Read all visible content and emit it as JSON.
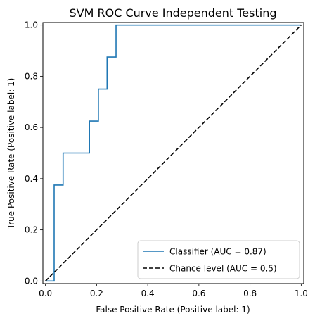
{
  "chart_data": {
    "type": "line",
    "title": "SVM ROC Curve Independent Testing",
    "xlabel": "False Positive Rate (Positive label: 1)",
    "ylabel": "True Positive Rate (Positive label: 1)",
    "xlim": [
      -0.01,
      1.01
    ],
    "ylim": [
      -0.01,
      1.01
    ],
    "xticks": [
      0.0,
      0.2,
      0.4,
      0.6,
      0.8,
      1.0
    ],
    "xtick_labels": [
      "0.0",
      "0.2",
      "0.4",
      "0.6",
      "0.8",
      "1.0"
    ],
    "yticks": [
      0.0,
      0.2,
      0.4,
      0.6,
      0.8,
      1.0
    ],
    "ytick_labels": [
      "0.0",
      "0.2",
      "0.4",
      "0.6",
      "0.8",
      "1.0"
    ],
    "grid": false,
    "legend_position": "bottom-right",
    "series": [
      {
        "name": "Classifier (AUC = 0.87)",
        "color": "#1f77b4",
        "style": "solid",
        "x": [
          0.0,
          0.0,
          0.034,
          0.034,
          0.069,
          0.069,
          0.172,
          0.172,
          0.207,
          0.207,
          0.241,
          0.241,
          0.276,
          0.276,
          1.0
        ],
        "y": [
          0.0,
          0.0,
          0.0,
          0.375,
          0.375,
          0.5,
          0.5,
          0.625,
          0.625,
          0.75,
          0.75,
          0.875,
          0.875,
          1.0,
          1.0
        ]
      },
      {
        "name": "Chance level (AUC = 0.5)",
        "color": "#000000",
        "style": "dashed",
        "x": [
          0.0,
          1.0
        ],
        "y": [
          0.0,
          1.0
        ]
      }
    ]
  }
}
